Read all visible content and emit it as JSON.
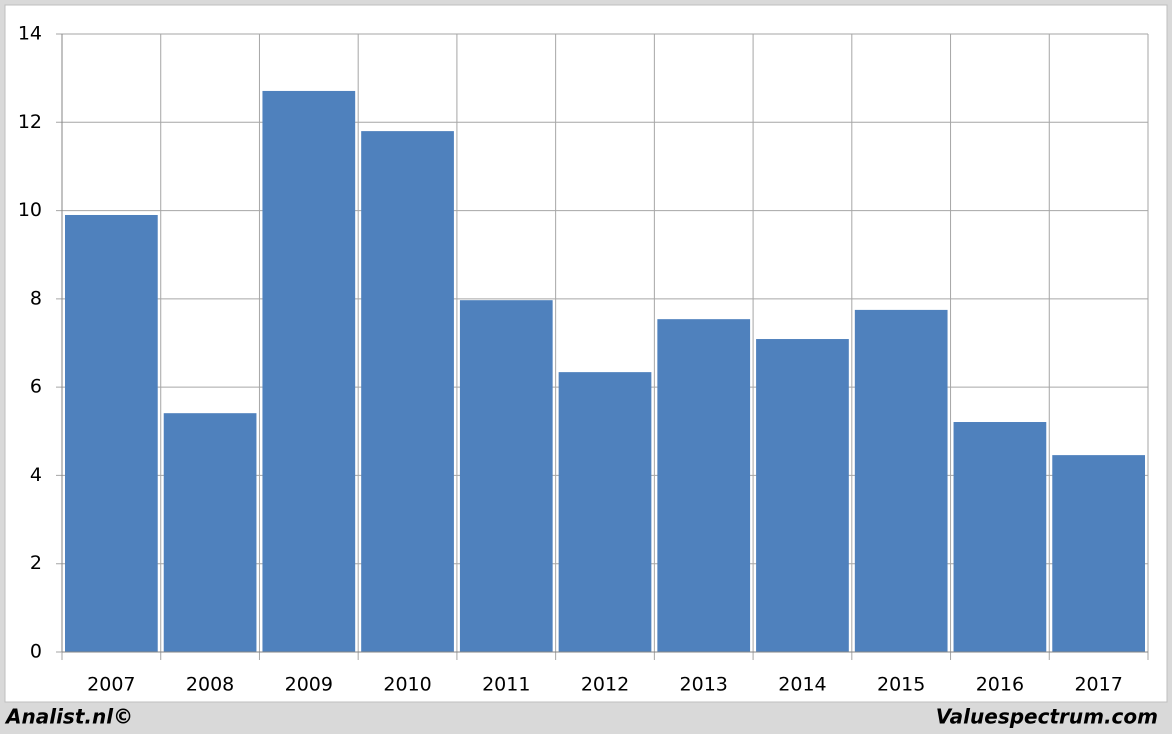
{
  "chart_data": {
    "type": "bar",
    "categories": [
      "2007",
      "2008",
      "2009",
      "2010",
      "2011",
      "2012",
      "2013",
      "2014",
      "2015",
      "2016",
      "2017"
    ],
    "values": [
      9.9,
      5.41,
      12.71,
      11.8,
      7.97,
      6.34,
      7.54,
      7.09,
      7.75,
      5.21,
      4.46
    ],
    "color": "#4f81bd",
    "ylim": [
      0,
      14
    ],
    "yticks": [
      0,
      2,
      4,
      6,
      8,
      10,
      12,
      14
    ],
    "grid": true
  },
  "footer": {
    "left": "Analist.nl©",
    "right": "Valuespectrum.com"
  }
}
